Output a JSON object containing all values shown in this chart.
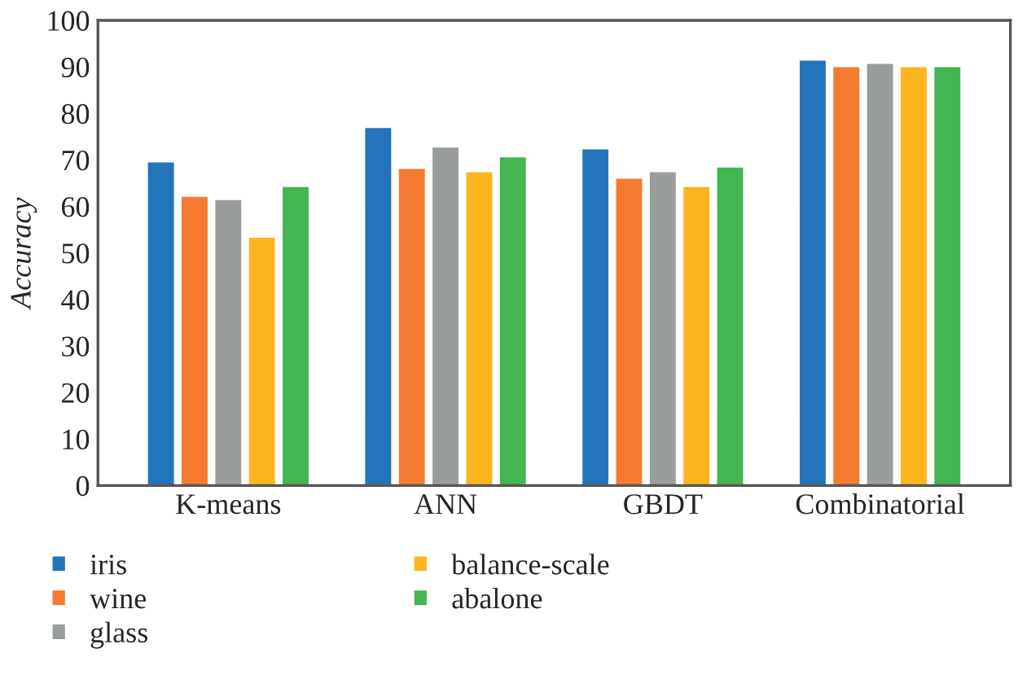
{
  "chart_data": {
    "type": "bar",
    "ylabel": "Accuracy",
    "categories": [
      "K-means",
      "ANN",
      "GBDT",
      "Combinatorial"
    ],
    "series": [
      {
        "name": "iris",
        "color": "#2474bc",
        "values": [
          69.7,
          77.1,
          72.5,
          91.6
        ]
      },
      {
        "name": "wine",
        "color": "#f47b30",
        "values": [
          62.3,
          68.3,
          66.2,
          90.2
        ]
      },
      {
        "name": "glass",
        "color": "#9a9d9e",
        "values": [
          61.6,
          72.9,
          67.6,
          90.9
        ]
      },
      {
        "name": "balance-scale",
        "color": "#fcb51d",
        "values": [
          53.5,
          67.6,
          64.4,
          90.2
        ]
      },
      {
        "name": "abalone",
        "color": "#43b651",
        "values": [
          64.4,
          70.8,
          68.6,
          90.2
        ]
      }
    ],
    "ylim": [
      0,
      100
    ],
    "yticks": [
      0,
      10,
      20,
      30,
      40,
      50,
      60,
      70,
      80,
      90,
      100
    ],
    "grid": false,
    "legend": "bottom"
  }
}
